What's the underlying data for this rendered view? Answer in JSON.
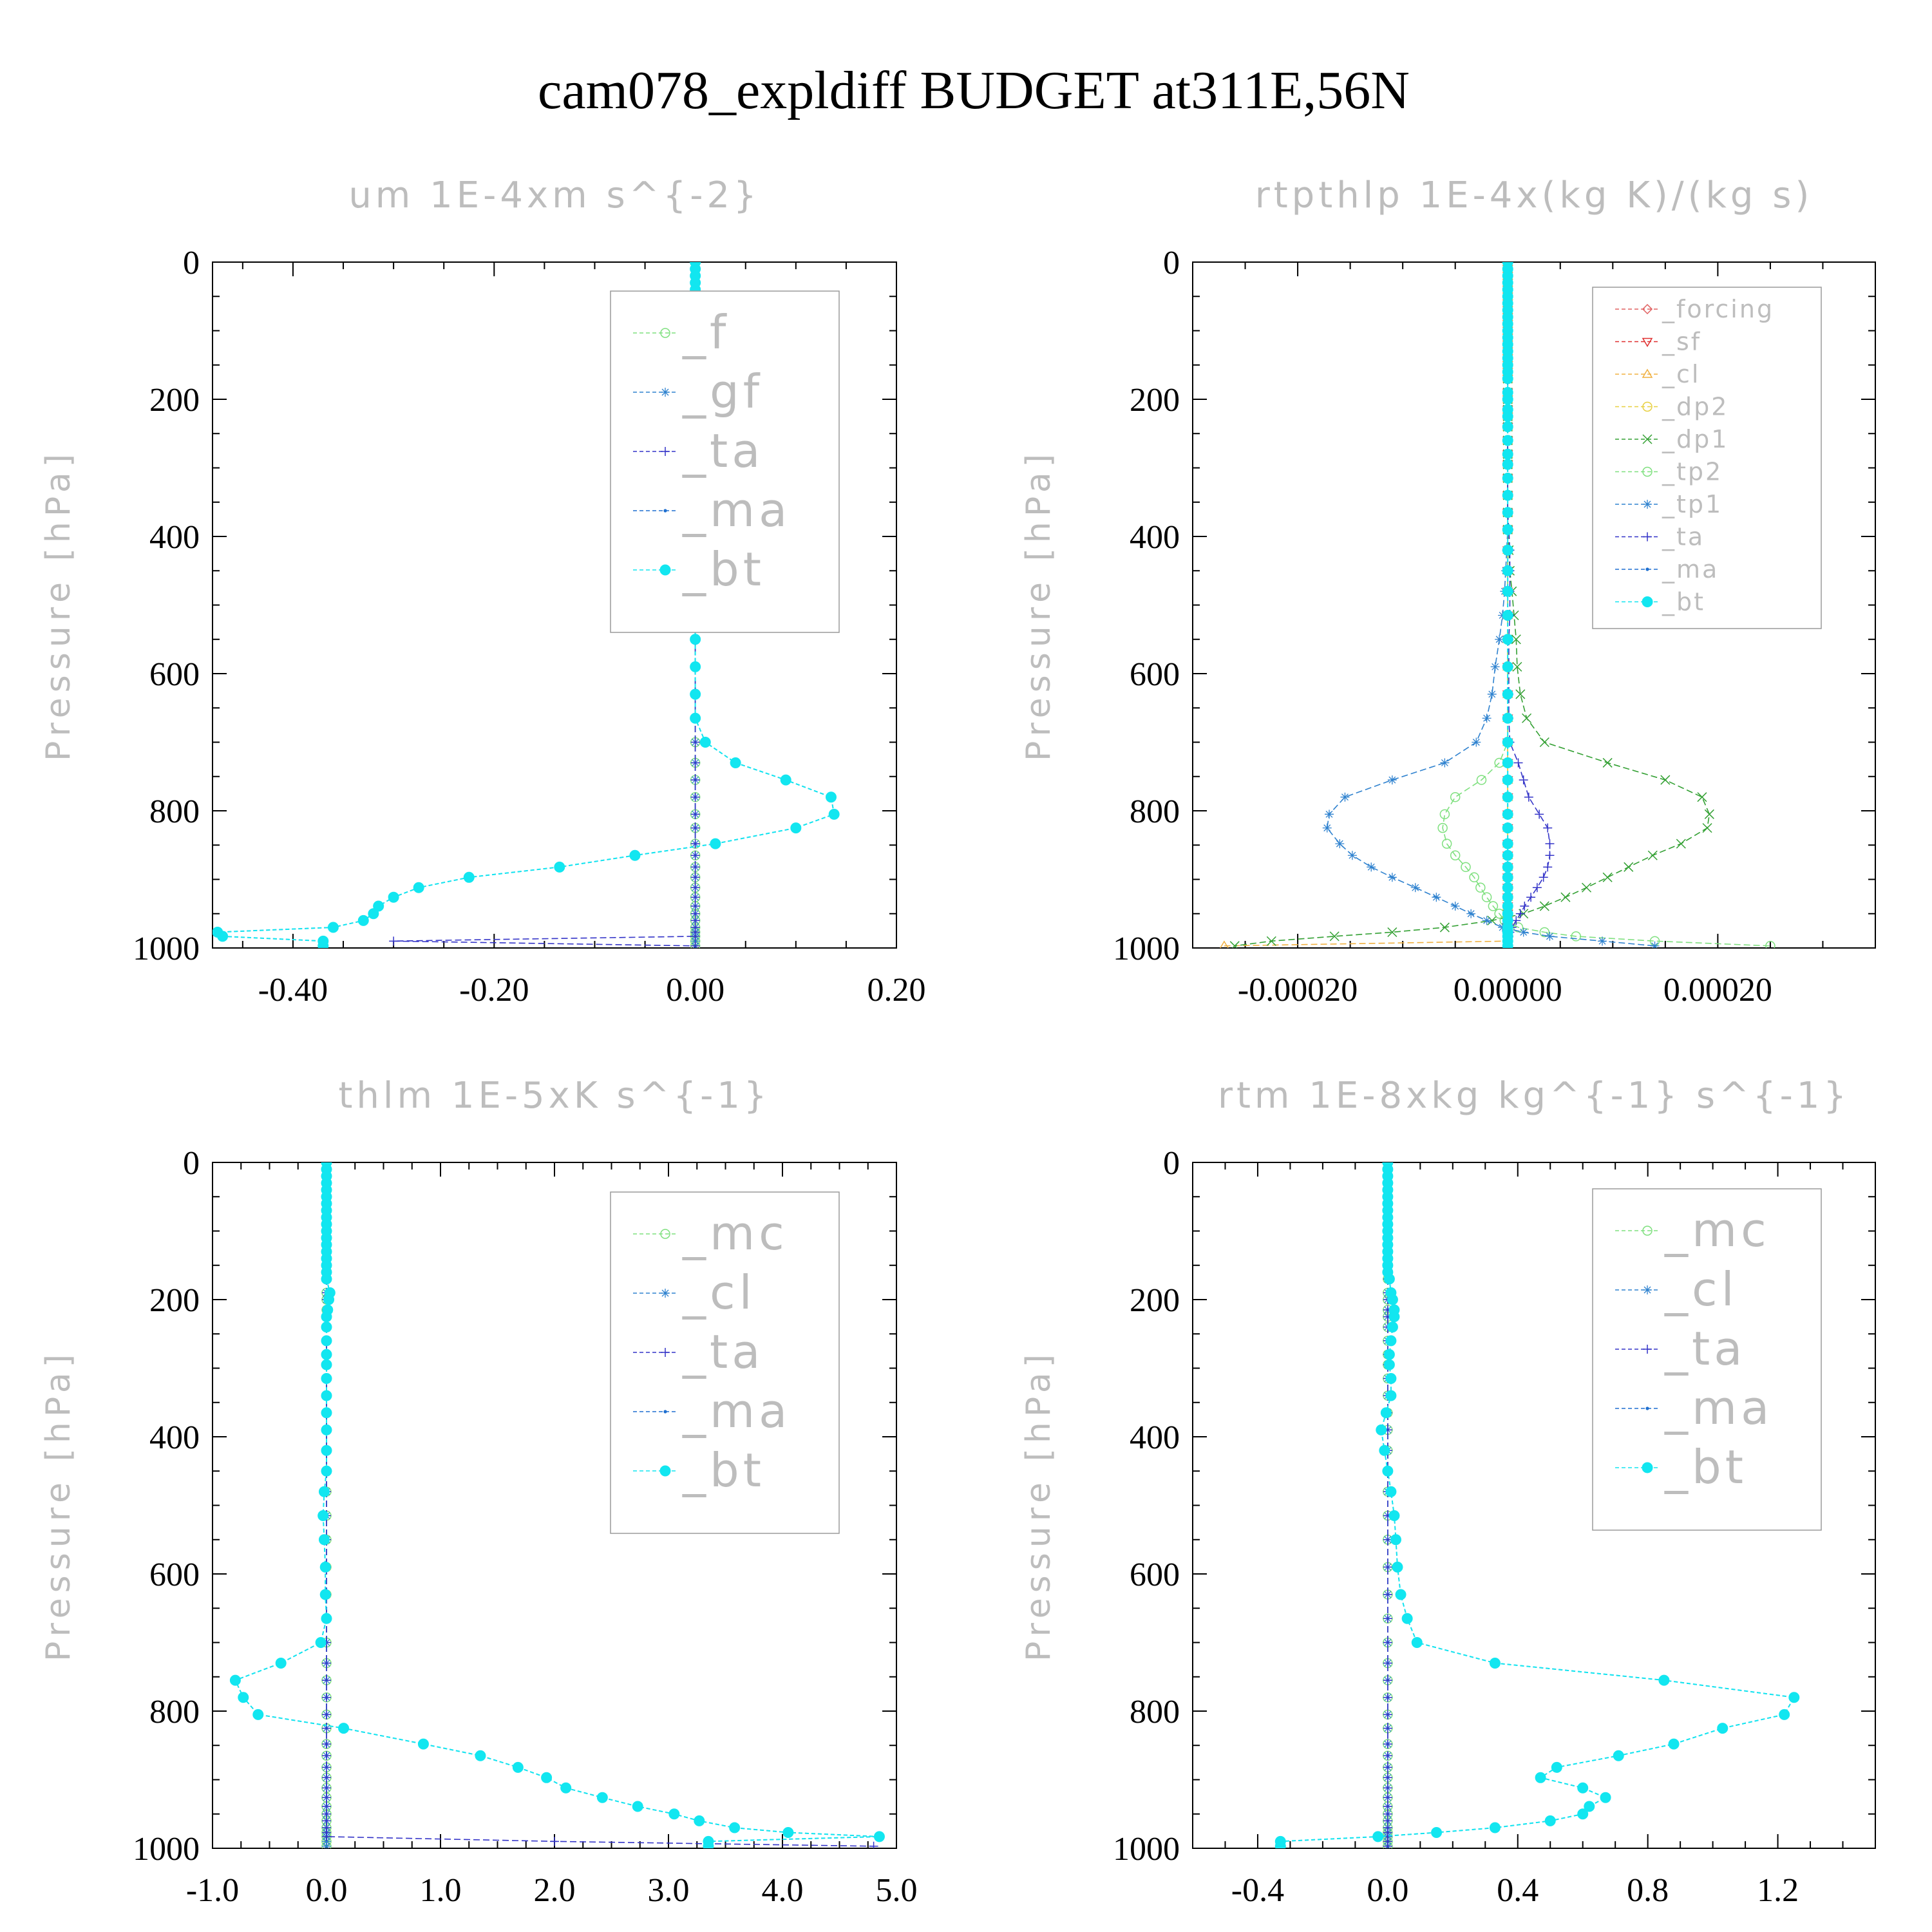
{
  "figure_title": "cam078_expldiff  BUDGET at311E,56N",
  "colors": {
    "f": "#7fe07f",
    "gf": "#2f82cf",
    "ta": "#3434c8",
    "ma": "#1e6fd0",
    "bt": "#12e6f0",
    "mc": "#7fe07f",
    "cl_main": "#2f82cf",
    "forcing": "#e06060",
    "sf": "#e03030",
    "cl": "#f0b040",
    "dp2": "#e8d040",
    "dp1": "#33a033",
    "tp2": "#7fe07f",
    "tp1": "#2f82cf"
  },
  "chart_data": [
    {
      "type": "line",
      "title": "um  1E-4xm s^{-2}",
      "ylabel": "Pressure [hPa]",
      "xlim": [
        -0.48,
        0.2
      ],
      "ylim": [
        1000,
        0
      ],
      "xticks": [
        -0.4,
        -0.2,
        0.0,
        0.2
      ],
      "xticklabels": [
        "-0.40",
        "-0.20",
        "0.00",
        "0.20"
      ],
      "yticks": [
        0,
        200,
        400,
        600,
        800,
        1000
      ],
      "yticklabels": [
        "0",
        "200",
        "400",
        "600",
        "800",
        "1000"
      ],
      "legend_style": "big",
      "legend_position": "top-right",
      "levels": [
        0,
        10,
        20,
        30,
        40,
        50,
        60,
        70,
        80,
        90,
        100,
        110,
        120,
        130,
        140,
        150,
        160,
        170,
        190,
        200,
        215,
        225,
        240,
        260,
        280,
        295,
        315,
        340,
        365,
        390,
        420,
        450,
        480,
        515,
        550,
        590,
        630,
        665,
        700,
        730,
        755,
        780,
        805,
        825,
        848,
        865,
        882,
        897,
        912,
        926,
        939,
        950,
        960,
        970,
        977,
        983,
        990,
        997
      ],
      "series": [
        {
          "name": "_f",
          "key": "f",
          "marker": "circle",
          "constant": 0.0
        },
        {
          "name": "_gf",
          "key": "gf",
          "marker": "asterisk",
          "constant": 0.0
        },
        {
          "name": "_ta",
          "key": "ta",
          "marker": "plus",
          "constant": 0.0,
          "surface": [
            [
              990,
              -0.3
            ],
            [
              997,
              0.0
            ]
          ]
        },
        {
          "name": "_ma",
          "key": "ma",
          "marker": "dot",
          "ref": "bt"
        },
        {
          "name": "_bt",
          "key": "bt",
          "marker": "filled",
          "values": [
            0.0,
            0.0,
            0.0,
            0.0,
            0.0,
            0.0,
            0.0,
            0.0,
            0.0,
            0.0,
            0.0,
            0.0,
            0.0,
            0.0,
            0.0,
            0.0,
            0.0,
            0.003,
            -0.004,
            -0.006,
            -0.007,
            -0.007,
            -0.006,
            -0.003,
            0.0,
            0.001,
            0.001,
            0.001,
            0.0,
            0.0,
            0.0,
            0.0,
            0.0,
            0.0,
            0.0,
            0.0,
            0.0,
            0.0,
            0.01,
            0.04,
            0.09,
            0.135,
            0.138,
            0.1,
            0.02,
            -0.06,
            -0.135,
            -0.225,
            -0.275,
            -0.3,
            -0.315,
            -0.32,
            -0.33,
            -0.36,
            -0.475,
            -0.47,
            -0.37,
            -0.37
          ]
        }
      ]
    },
    {
      "type": "line",
      "title": "rtpthlp  1E-4x(kg K)/(kg s)",
      "ylabel": "Pressure [hPa]",
      "xlim": [
        -0.0003,
        0.00035
      ],
      "ylim": [
        1000,
        0
      ],
      "xticks": [
        -0.0002,
        0.0,
        0.0002
      ],
      "xticklabels": [
        "-0.00020",
        "0.00000",
        "0.00020"
      ],
      "yticks": [
        0,
        200,
        400,
        600,
        800,
        1000
      ],
      "yticklabels": [
        "0",
        "200",
        "400",
        "600",
        "800",
        "1000"
      ],
      "legend_style": "small",
      "legend_position": "top-right",
      "levels": [
        0,
        10,
        20,
        30,
        40,
        50,
        60,
        70,
        80,
        90,
        100,
        110,
        120,
        130,
        140,
        150,
        160,
        170,
        190,
        200,
        215,
        225,
        240,
        260,
        280,
        295,
        315,
        340,
        365,
        390,
        420,
        450,
        480,
        515,
        550,
        590,
        630,
        665,
        700,
        730,
        755,
        780,
        805,
        825,
        848,
        865,
        882,
        897,
        912,
        926,
        939,
        950,
        960,
        970,
        977,
        983,
        990,
        997
      ],
      "series": [
        {
          "name": "_forcing",
          "key": "forcing",
          "marker": "diamond",
          "constant": 0.0
        },
        {
          "name": "_sf",
          "key": "sf",
          "marker": "tri-down",
          "constant": 0.0
        },
        {
          "name": "_cl",
          "key": "cl",
          "marker": "tri-up",
          "constant": 0.0,
          "surface": [
            [
              965,
              0.0
            ],
            [
              997,
              -0.00027
            ]
          ]
        },
        {
          "name": "_dp2",
          "key": "dp2",
          "marker": "circle",
          "constant": 0.0
        },
        {
          "name": "_dp1",
          "key": "dp1",
          "marker": "x",
          "values": [
            0.0,
            0.0,
            0.0,
            0.0,
            0.0,
            0.0,
            0.0,
            0.0,
            0.0,
            0.0,
            0.0,
            0.0,
            0.0,
            0.0,
            0.0,
            0.0,
            0.0,
            0.0,
            0.0,
            0.0,
            0.0,
            0.0,
            0.0,
            0.0,
            0.0,
            0.0,
            0.0,
            0.0,
            0.0,
            0.0,
            1e-06,
            2e-06,
            4e-06,
            6e-06,
            8e-06,
            9e-06,
            1.2e-05,
            1.8e-05,
            3.5e-05,
            9.5e-05,
            0.00015,
            0.000185,
            0.000192,
            0.00019,
            0.000165,
            0.000138,
            0.000115,
            9.5e-05,
            7.5e-05,
            5.5e-05,
            3.5e-05,
            1.5e-05,
            -1.5e-05,
            -6e-05,
            -0.00011,
            -0.000165,
            -0.000225,
            -0.00026
          ]
        },
        {
          "name": "_tp2",
          "key": "tp2",
          "marker": "circle",
          "values": [
            0.0,
            0.0,
            0.0,
            0.0,
            0.0,
            0.0,
            0.0,
            0.0,
            0.0,
            0.0,
            0.0,
            0.0,
            0.0,
            0.0,
            0.0,
            0.0,
            0.0,
            0.0,
            0.0,
            0.0,
            0.0,
            0.0,
            0.0,
            0.0,
            0.0,
            0.0,
            0.0,
            0.0,
            0.0,
            0.0,
            0.0,
            0.0,
            0.0,
            0.0,
            0.0,
            0.0,
            0.0,
            0.0,
            0.0,
            -8e-06,
            -2.5e-05,
            -5e-05,
            -6e-05,
            -6.2e-05,
            -5.8e-05,
            -5e-05,
            -4e-05,
            -3.2e-05,
            -2.6e-05,
            -2e-05,
            -1.4e-05,
            -8e-06,
            -3e-06,
            1e-05,
            3.5e-05,
            6.5e-05,
            0.00014,
            0.00025
          ]
        },
        {
          "name": "_tp1",
          "key": "tp1",
          "marker": "asterisk",
          "values": [
            0.0,
            0.0,
            0.0,
            0.0,
            0.0,
            0.0,
            0.0,
            0.0,
            0.0,
            0.0,
            0.0,
            0.0,
            0.0,
            0.0,
            0.0,
            0.0,
            0.0,
            0.0,
            0.0,
            0.0,
            0.0,
            0.0,
            0.0,
            0.0,
            0.0,
            0.0,
            0.0,
            0.0,
            0.0,
            0.0,
            -1e-06,
            -2e-06,
            -3e-06,
            -5e-06,
            -8e-06,
            -1.2e-05,
            -1.5e-05,
            -2e-05,
            -3e-05,
            -6e-05,
            -0.00011,
            -0.000155,
            -0.00017,
            -0.000172,
            -0.00016,
            -0.000148,
            -0.00013,
            -0.00011,
            -8.8e-05,
            -6.8e-05,
            -5e-05,
            -3.5e-05,
            -2e-05,
            -5e-06,
            1.5e-05,
            4e-05,
            9e-05,
            0.00014
          ]
        },
        {
          "name": "_ta",
          "key": "ta",
          "marker": "plus",
          "values": [
            0.0,
            0.0,
            0.0,
            0.0,
            0.0,
            0.0,
            0.0,
            0.0,
            0.0,
            0.0,
            0.0,
            0.0,
            0.0,
            0.0,
            0.0,
            0.0,
            0.0,
            0.0,
            0.0,
            0.0,
            0.0,
            0.0,
            0.0,
            0.0,
            0.0,
            0.0,
            0.0,
            0.0,
            0.0,
            1e-06,
            2e-06,
            2e-06,
            2e-06,
            2e-06,
            1e-06,
            1e-06,
            1e-06,
            1e-06,
            2e-06,
            1e-05,
            1.5e-05,
            2e-05,
            3e-05,
            3.8e-05,
            4e-05,
            4e-05,
            3.8e-05,
            3.4e-05,
            2.8e-05,
            2.2e-05,
            1.6e-05,
            1.2e-05,
            8e-06,
            4e-06,
            2e-06,
            1e-06,
            0.0,
            0.0
          ]
        },
        {
          "name": "_ma",
          "key": "ma",
          "marker": "dot",
          "constant": 0.0
        },
        {
          "name": "_bt",
          "key": "bt",
          "marker": "filled",
          "constant": 0.0
        }
      ]
    },
    {
      "type": "line",
      "title": "thlm  1E-5xK s^{-1}",
      "ylabel": "Pressure [hPa]",
      "xlim": [
        -1.0,
        5.0
      ],
      "ylim": [
        1000,
        0
      ],
      "xticks": [
        -1.0,
        0.0,
        1.0,
        2.0,
        3.0,
        4.0,
        5.0
      ],
      "xticklabels": [
        "-1.0",
        "0.0",
        "1.0",
        "2.0",
        "3.0",
        "4.0",
        "5.0"
      ],
      "yticks": [
        0,
        200,
        400,
        600,
        800,
        1000
      ],
      "yticklabels": [
        "0",
        "200",
        "400",
        "600",
        "800",
        "1000"
      ],
      "legend_style": "big",
      "legend_position": "top-right",
      "levels": [
        0,
        10,
        20,
        30,
        40,
        50,
        60,
        70,
        80,
        90,
        100,
        110,
        120,
        130,
        140,
        150,
        160,
        170,
        190,
        200,
        215,
        225,
        240,
        260,
        280,
        295,
        315,
        340,
        365,
        390,
        420,
        450,
        480,
        515,
        550,
        590,
        630,
        665,
        700,
        730,
        755,
        780,
        805,
        825,
        848,
        865,
        882,
        897,
        912,
        926,
        939,
        950,
        960,
        970,
        977,
        983,
        990,
        997
      ],
      "series": [
        {
          "name": "_mc",
          "key": "mc",
          "marker": "circle",
          "constant": 0.0
        },
        {
          "name": "_cl",
          "key": "cl_main",
          "marker": "asterisk",
          "constant": 0.0
        },
        {
          "name": "_ta",
          "key": "ta",
          "marker": "plus",
          "constant": 0.0,
          "surface": [
            [
              990,
              2.0
            ],
            [
              997,
              4.8
            ]
          ]
        },
        {
          "name": "_ma",
          "key": "ma",
          "marker": "dot",
          "ref": "bt"
        },
        {
          "name": "_bt",
          "key": "bt",
          "marker": "filled",
          "values": [
            0.0,
            0.0,
            0.0,
            0.0,
            0.0,
            0.0,
            0.0,
            0.0,
            0.0,
            0.0,
            0.0,
            0.0,
            0.0,
            0.0,
            0.0,
            0.0,
            0.0,
            0.0,
            0.03,
            0.02,
            0.01,
            0.0,
            0.0,
            0.0,
            0.0,
            0.0,
            0.0,
            0.0,
            0.0,
            0.0,
            0.0,
            0.0,
            -0.02,
            -0.03,
            -0.02,
            -0.01,
            -0.01,
            0.0,
            -0.05,
            -0.4,
            -0.8,
            -0.73,
            -0.6,
            0.15,
            0.85,
            1.35,
            1.68,
            1.93,
            2.1,
            2.42,
            2.73,
            3.05,
            3.27,
            3.58,
            4.05,
            4.85,
            3.35,
            3.35
          ]
        }
      ]
    },
    {
      "type": "line",
      "title": "rtm  1E-8xkg kg^{-1} s^{-1}",
      "ylabel": "Pressure [hPa]",
      "xlim": [
        -0.6,
        1.5
      ],
      "ylim": [
        1000,
        0
      ],
      "xticks": [
        -0.4,
        0.0,
        0.4,
        0.8,
        1.2
      ],
      "xticklabels": [
        "-0.4",
        "0.0",
        "0.4",
        "0.8",
        "1.2"
      ],
      "yticks": [
        0,
        200,
        400,
        600,
        800,
        1000
      ],
      "yticklabels": [
        "0",
        "200",
        "400",
        "600",
        "800",
        "1000"
      ],
      "legend_style": "big",
      "legend_position": "top-right",
      "levels": [
        0,
        10,
        20,
        30,
        40,
        50,
        60,
        70,
        80,
        90,
        100,
        110,
        120,
        130,
        140,
        150,
        160,
        170,
        190,
        200,
        215,
        225,
        240,
        260,
        280,
        295,
        315,
        340,
        365,
        390,
        420,
        450,
        480,
        515,
        550,
        590,
        630,
        665,
        700,
        730,
        755,
        780,
        805,
        825,
        848,
        865,
        882,
        897,
        912,
        926,
        939,
        950,
        960,
        970,
        977,
        983,
        990,
        997
      ],
      "series": [
        {
          "name": "_mc",
          "key": "mc",
          "marker": "circle",
          "constant": 0.0
        },
        {
          "name": "_cl",
          "key": "cl_main",
          "marker": "asterisk",
          "constant": 0.0
        },
        {
          "name": "_ta",
          "key": "ta",
          "marker": "plus",
          "constant": 0.0
        },
        {
          "name": "_ma",
          "key": "ma",
          "marker": "dot",
          "ref": "bt"
        },
        {
          "name": "_bt",
          "key": "bt",
          "marker": "filled",
          "values": [
            0.0,
            0.0,
            0.0,
            0.0,
            0.0,
            0.0,
            0.0,
            0.0,
            0.0,
            0.0,
            0.0,
            0.0,
            0.0,
            0.0,
            0.0,
            0.0,
            0.0,
            0.005,
            0.01,
            0.015,
            0.02,
            0.02,
            0.015,
            0.01,
            0.005,
            0.005,
            0.01,
            0.01,
            -0.005,
            -0.02,
            -0.01,
            0.0,
            0.01,
            0.02,
            0.025,
            0.03,
            0.04,
            0.06,
            0.09,
            0.33,
            0.85,
            1.25,
            1.22,
            1.03,
            0.88,
            0.71,
            0.52,
            0.47,
            0.6,
            0.67,
            0.62,
            0.6,
            0.5,
            0.33,
            0.15,
            -0.03,
            -0.33,
            -0.33
          ]
        }
      ]
    }
  ]
}
